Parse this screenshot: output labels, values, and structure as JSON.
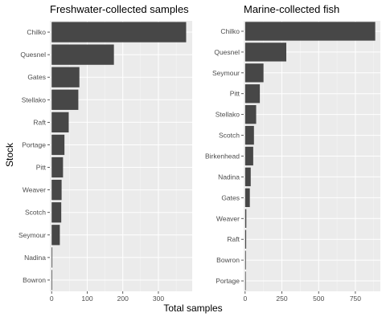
{
  "colors": {
    "panel_bg": "#ebebeb",
    "grid_major": "#ffffff",
    "bar": "#474747",
    "tick_text": "#4d4d4d"
  },
  "axis_labels": {
    "y": "Stock",
    "x": "Total samples"
  },
  "chart_data": [
    {
      "type": "bar",
      "orientation": "horizontal",
      "title": "Freshwater-collected samples",
      "categories": [
        "Chilko",
        "Quesnel",
        "Gates",
        "Stellako",
        "Raft",
        "Portage",
        "Pitt",
        "Weaver",
        "Scotch",
        "Seymour",
        "Nadina",
        "Bowron"
      ],
      "values": [
        378,
        175,
        78,
        75,
        48,
        36,
        32,
        28,
        27,
        23,
        2,
        1
      ],
      "xlim": [
        -5,
        395
      ],
      "xticks": [
        0,
        100,
        200,
        300
      ],
      "ylabel": "Stock",
      "xlabel": "Total samples",
      "grid": true
    },
    {
      "type": "bar",
      "orientation": "horizontal",
      "title": "Marine-collected fish",
      "categories": [
        "Chilko",
        "Quesnel",
        "Seymour",
        "Pitt",
        "Stellako",
        "Scotch",
        "Birkenhead",
        "Nadina",
        "Gates",
        "Weaver",
        "Raft",
        "Bowron",
        "Portage"
      ],
      "values": [
        885,
        280,
        125,
        100,
        75,
        60,
        55,
        38,
        32,
        8,
        7,
        5,
        3
      ],
      "xlim": [
        -10,
        920
      ],
      "xticks": [
        0,
        250,
        500,
        750
      ],
      "xlabel": "Total samples",
      "grid": true
    }
  ]
}
